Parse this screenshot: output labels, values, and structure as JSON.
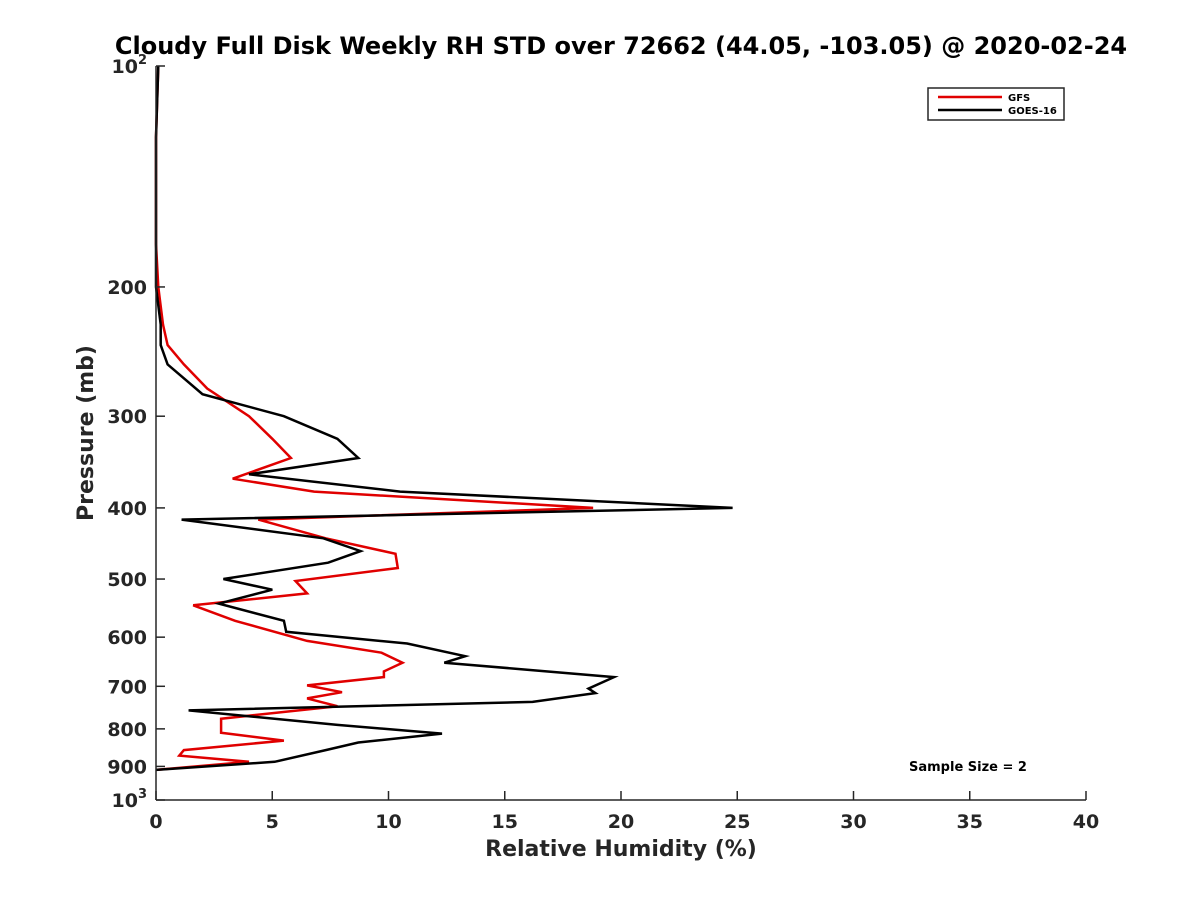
{
  "chart_data": {
    "type": "line",
    "title": "Cloudy Full Disk Weekly RH STD over 72662 (44.05, -103.05) @ 2020-02-24",
    "xlabel": "Relative Humidity (%)",
    "ylabel": "Pressure (mb)",
    "xlim": [
      0,
      40
    ],
    "ylim": [
      100,
      1000
    ],
    "yscale": "log",
    "y_reversed": true,
    "x_ticks": [
      "0",
      "5",
      "10",
      "15",
      "20",
      "25",
      "30",
      "35",
      "40"
    ],
    "y_ticks": [
      {
        "value": 100,
        "base": "10",
        "sup": "2"
      },
      {
        "value": 200,
        "base": "200",
        "sup": ""
      },
      {
        "value": 300,
        "base": "300",
        "sup": ""
      },
      {
        "value": 400,
        "base": "400",
        "sup": ""
      },
      {
        "value": 500,
        "base": "500",
        "sup": ""
      },
      {
        "value": 600,
        "base": "600",
        "sup": ""
      },
      {
        "value": 700,
        "base": "700",
        "sup": ""
      },
      {
        "value": 800,
        "base": "800",
        "sup": ""
      },
      {
        "value": 900,
        "base": "900",
        "sup": ""
      },
      {
        "value": 1000,
        "base": "10",
        "sup": "3"
      }
    ],
    "legend_position": "top-right",
    "grid": false,
    "annotation": "Sample Size = 2",
    "series": [
      {
        "name": "GFS",
        "color": "#e00000",
        "points": [
          [
            0.1,
            100
          ],
          [
            0.0,
            125
          ],
          [
            0.0,
            150
          ],
          [
            0.0,
            175
          ],
          [
            0.1,
            200
          ],
          [
            0.3,
            225
          ],
          [
            0.5,
            240
          ],
          [
            1.2,
            255
          ],
          [
            2.2,
            275
          ],
          [
            4.0,
            300
          ],
          [
            5.0,
            322
          ],
          [
            5.8,
            342
          ],
          [
            3.3,
            365
          ],
          [
            6.8,
            380
          ],
          [
            18.8,
            400
          ],
          [
            4.4,
            415
          ],
          [
            7.3,
            440
          ],
          [
            10.3,
            462
          ],
          [
            10.4,
            483
          ],
          [
            6.0,
            503
          ],
          [
            6.5,
            523
          ],
          [
            1.6,
            543
          ],
          [
            3.4,
            570
          ],
          [
            6.5,
            607
          ],
          [
            9.7,
            630
          ],
          [
            10.6,
            650
          ],
          [
            9.8,
            668
          ],
          [
            9.8,
            680
          ],
          [
            6.5,
            698
          ],
          [
            8.0,
            713
          ],
          [
            6.5,
            727
          ],
          [
            7.8,
            745
          ],
          [
            2.8,
            775
          ],
          [
            2.8,
            810
          ],
          [
            5.5,
            830
          ],
          [
            1.2,
            855
          ],
          [
            1.0,
            870
          ],
          [
            4.0,
            887
          ],
          [
            0.0,
            910
          ]
        ]
      },
      {
        "name": "GOES-16",
        "color": "#000000",
        "points": [
          [
            0.1,
            100
          ],
          [
            0.0,
            125
          ],
          [
            0.0,
            150
          ],
          [
            0.0,
            175
          ],
          [
            0.0,
            200
          ],
          [
            0.2,
            225
          ],
          [
            0.2,
            240
          ],
          [
            0.5,
            255
          ],
          [
            2.0,
            280
          ],
          [
            5.5,
            300
          ],
          [
            7.8,
            322
          ],
          [
            8.7,
            342
          ],
          [
            4.0,
            360
          ],
          [
            10.5,
            380
          ],
          [
            24.8,
            400
          ],
          [
            1.1,
            415
          ],
          [
            7.2,
            440
          ],
          [
            8.8,
            458
          ],
          [
            7.4,
            475
          ],
          [
            2.9,
            500
          ],
          [
            5.0,
            517
          ],
          [
            2.7,
            540
          ],
          [
            5.5,
            570
          ],
          [
            5.6,
            590
          ],
          [
            10.8,
            612
          ],
          [
            13.3,
            637
          ],
          [
            12.4,
            650
          ],
          [
            19.7,
            680
          ],
          [
            18.6,
            705
          ],
          [
            18.9,
            715
          ],
          [
            16.2,
            735
          ],
          [
            1.4,
            755
          ],
          [
            7.8,
            790
          ],
          [
            12.3,
            812
          ],
          [
            8.7,
            835
          ],
          [
            7.3,
            855
          ],
          [
            5.1,
            887
          ],
          [
            0.0,
            910
          ]
        ]
      }
    ]
  }
}
